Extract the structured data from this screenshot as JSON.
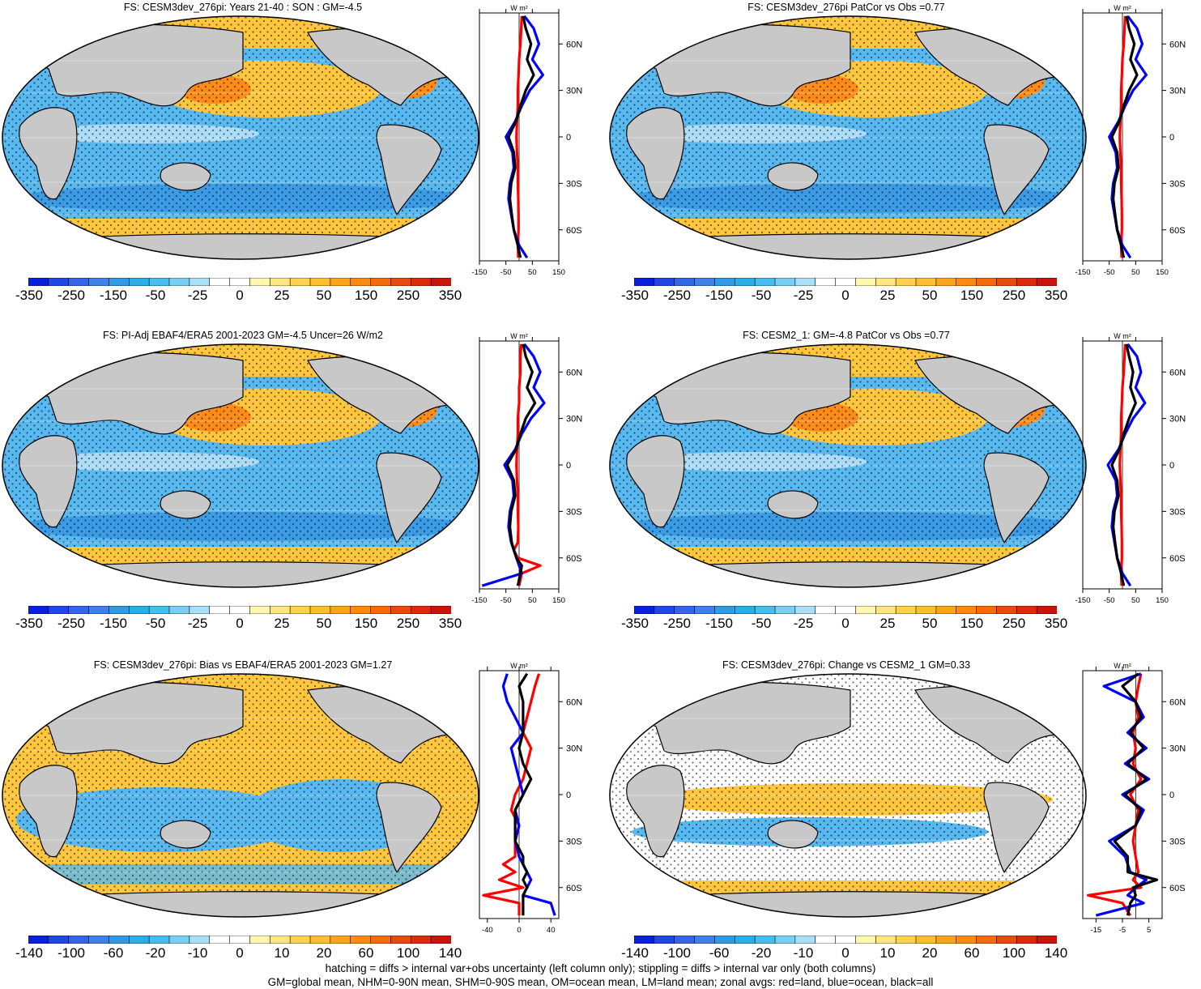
{
  "colorbars": {
    "main": {
      "labels": [
        "-350",
        "-250",
        "-150",
        "-50",
        "-25",
        "0",
        "25",
        "50",
        "150",
        "250",
        "350"
      ],
      "colors": [
        "#0a1fdc",
        "#2147e6",
        "#3464e8",
        "#3f80ea",
        "#2f9be6",
        "#29aee8",
        "#46bff0",
        "#79cff3",
        "#a9dff7",
        "#ffffff",
        "#ffffff",
        "#fff7b0",
        "#ffe680",
        "#ffd24d",
        "#ffbe2e",
        "#ffa31a",
        "#ff8a0f",
        "#f56a0a",
        "#e84a0a",
        "#dc2a0a",
        "#c8140a"
      ]
    },
    "diff": {
      "labels": [
        "-140",
        "-100",
        "-60",
        "-20",
        "-10",
        "0",
        "10",
        "20",
        "60",
        "100",
        "140"
      ],
      "colors": [
        "#0a1fdc",
        "#2147e6",
        "#3464e8",
        "#3f80ea",
        "#2f9be6",
        "#29aee8",
        "#46bff0",
        "#79cff3",
        "#a9dff7",
        "#ffffff",
        "#ffffff",
        "#fff7b0",
        "#ffe680",
        "#ffd24d",
        "#ffbe2e",
        "#ffa31a",
        "#ff8a0f",
        "#f56a0a",
        "#e84a0a",
        "#dc2a0a",
        "#c8140a"
      ]
    }
  },
  "map_palette": {
    "ocean_cool": "#58b8f0",
    "ocean_cold": "#2f8fe0",
    "ocean_warm": "#ffc640",
    "ocean_hot": "#ff8c1a",
    "land": "#c8c8c8",
    "neutral": "#ffffff"
  },
  "panels": [
    {
      "id": "p1",
      "title": "FS: CESM3dev_276pi: Years 21-40 : SON : GM=-4.5",
      "colorbar": "main",
      "xticks": [
        "-150",
        "-50",
        "50",
        "150"
      ],
      "style": "mean"
    },
    {
      "id": "p2",
      "title": "FS: CESM3dev_276pi PatCor vs Obs =0.77",
      "colorbar": "main",
      "xticks": [
        "-150",
        "-50",
        "50",
        "150"
      ],
      "style": "mean"
    },
    {
      "id": "p3",
      "title": "FS: PI-Adj EBAF4/ERA5 2001-2023 GM=-4.5 Uncer=26 W/m2",
      "colorbar": "main",
      "xticks": [
        "-150",
        "-50",
        "50",
        "150"
      ],
      "style": "mean"
    },
    {
      "id": "p4",
      "title": "FS: CESM2_1: GM=-4.8 PatCor vs Obs =0.77",
      "colorbar": "main",
      "xticks": [
        "-150",
        "-50",
        "50",
        "150"
      ],
      "style": "mean"
    },
    {
      "id": "p5",
      "title": "FS: CESM3dev_276pi: Bias vs EBAF4/ERA5 2001-2023  GM=1.27",
      "colorbar": "diff",
      "xticks": [
        "-40",
        "0",
        "40"
      ],
      "style": "bias"
    },
    {
      "id": "p6",
      "title": "FS: CESM3dev_276pi: Change vs CESM2_1 GM=0.33",
      "colorbar": "diff",
      "xticks": [
        "-15",
        "-5",
        "5"
      ],
      "style": "change"
    }
  ],
  "zonal": {
    "unit": "W m²",
    "lat_labels": [
      "60N",
      "30N",
      "0",
      "30S",
      "60S"
    ],
    "series_colors": {
      "land": "#ff0000",
      "ocean": "#0000ff",
      "all": "#000000"
    }
  },
  "chart_data": [
    {
      "type": "line",
      "title": "FS: CESM3dev_276pi: Years 21-40 : SON : GM=-4.5",
      "xlabel": "W m²",
      "xlim": [
        -150,
        150
      ],
      "ylim": [
        -80,
        80
      ],
      "yticks": [
        "60N",
        "30N",
        "0",
        "30S",
        "60S"
      ],
      "series": [
        {
          "name": "land",
          "lat": [
            78,
            70,
            60,
            50,
            40,
            30,
            20,
            10,
            0,
            -10,
            -20,
            -30,
            -40,
            -50,
            -60,
            -70,
            -78
          ],
          "values": [
            10,
            8,
            5,
            0,
            -2,
            -5,
            -5,
            -8,
            -10,
            -8,
            -5,
            -5,
            -3,
            -2,
            -2,
            -5,
            -3
          ]
        },
        {
          "name": "ocean",
          "lat": [
            78,
            70,
            60,
            50,
            40,
            30,
            20,
            10,
            0,
            -10,
            -20,
            -30,
            -40,
            -50,
            -60,
            -70,
            -78
          ],
          "values": [
            20,
            55,
            75,
            50,
            90,
            40,
            10,
            -15,
            -50,
            -25,
            -20,
            -35,
            -40,
            -30,
            -20,
            0,
            30
          ]
        },
        {
          "name": "all",
          "lat": [
            78,
            70,
            60,
            50,
            40,
            30,
            20,
            10,
            0,
            -10,
            -20,
            -30,
            -40,
            -50,
            -60,
            -70,
            -78
          ],
          "values": [
            15,
            25,
            45,
            30,
            55,
            25,
            5,
            -12,
            -40,
            -20,
            -15,
            -30,
            -35,
            -28,
            -20,
            -5,
            5
          ]
        }
      ]
    },
    {
      "type": "line",
      "title": "FS: CESM3dev_276pi PatCor vs Obs =0.77",
      "xlabel": "W m²",
      "xlim": [
        -150,
        150
      ],
      "ylim": [
        -80,
        80
      ],
      "yticks": [
        "60N",
        "30N",
        "0",
        "30S",
        "60S"
      ],
      "series": [
        {
          "name": "land",
          "lat": [
            78,
            70,
            60,
            50,
            40,
            30,
            20,
            10,
            0,
            -10,
            -20,
            -30,
            -40,
            -50,
            -60,
            -70,
            -78
          ],
          "values": [
            10,
            8,
            5,
            0,
            -2,
            -5,
            -5,
            -8,
            -10,
            -8,
            -5,
            -5,
            -3,
            -2,
            -2,
            -5,
            -3
          ]
        },
        {
          "name": "ocean",
          "lat": [
            78,
            70,
            60,
            50,
            40,
            30,
            20,
            10,
            0,
            -10,
            -20,
            -30,
            -40,
            -50,
            -60,
            -70,
            -78
          ],
          "values": [
            20,
            55,
            75,
            50,
            90,
            40,
            10,
            -15,
            -50,
            -25,
            -20,
            -35,
            -40,
            -30,
            -20,
            0,
            30
          ]
        },
        {
          "name": "all",
          "lat": [
            78,
            70,
            60,
            50,
            40,
            30,
            20,
            10,
            0,
            -10,
            -20,
            -30,
            -40,
            -50,
            -60,
            -70,
            -78
          ],
          "values": [
            15,
            25,
            45,
            30,
            55,
            25,
            5,
            -12,
            -40,
            -20,
            -15,
            -30,
            -35,
            -28,
            -20,
            -5,
            5
          ]
        }
      ]
    },
    {
      "type": "line",
      "title": "FS: PI-Adj EBAF4/ERA5 2001-2023 GM=-4.5 Uncer=26 W/m2",
      "xlabel": "W m²",
      "xlim": [
        -150,
        150
      ],
      "ylim": [
        -80,
        80
      ],
      "yticks": [
        "60N",
        "30N",
        "0",
        "30S",
        "60S"
      ],
      "series": [
        {
          "name": "land",
          "lat": [
            78,
            70,
            60,
            50,
            40,
            30,
            20,
            10,
            0,
            -10,
            -20,
            -30,
            -40,
            -50,
            -55,
            -60,
            -65,
            -70,
            -78
          ],
          "values": [
            8,
            5,
            5,
            0,
            0,
            -5,
            -5,
            -8,
            -10,
            -8,
            -5,
            -5,
            -3,
            -5,
            -20,
            -5,
            80,
            10,
            0
          ]
        },
        {
          "name": "ocean",
          "lat": [
            78,
            70,
            60,
            50,
            40,
            30,
            20,
            10,
            0,
            -10,
            -20,
            -30,
            -40,
            -50,
            -55,
            -60,
            -65,
            -70,
            -78
          ],
          "values": [
            20,
            55,
            80,
            55,
            95,
            45,
            10,
            -15,
            -55,
            -25,
            -20,
            -35,
            -40,
            -30,
            -20,
            -10,
            0,
            10,
            -140
          ]
        },
        {
          "name": "all",
          "lat": [
            78,
            70,
            60,
            50,
            40,
            30,
            20,
            10,
            0,
            -10,
            -20,
            -30,
            -40,
            -50,
            -55,
            -60,
            -65,
            -70,
            -78
          ],
          "values": [
            15,
            25,
            50,
            30,
            60,
            25,
            5,
            -12,
            -45,
            -20,
            -15,
            -30,
            -35,
            -28,
            -20,
            -10,
            10,
            5,
            -5
          ]
        }
      ]
    },
    {
      "type": "line",
      "title": "FS: CESM2_1: GM=-4.8 PatCor vs Obs =0.77",
      "xlabel": "W m²",
      "xlim": [
        -150,
        150
      ],
      "ylim": [
        -80,
        80
      ],
      "yticks": [
        "60N",
        "30N",
        "0",
        "30S",
        "60S"
      ],
      "series": [
        {
          "name": "land",
          "lat": [
            78,
            70,
            60,
            50,
            40,
            30,
            20,
            10,
            0,
            -10,
            -20,
            -30,
            -40,
            -50,
            -60,
            -70,
            -78
          ],
          "values": [
            10,
            8,
            5,
            0,
            -2,
            -5,
            -5,
            -8,
            -10,
            -8,
            -5,
            -5,
            -3,
            -2,
            -2,
            -5,
            -3
          ]
        },
        {
          "name": "ocean",
          "lat": [
            78,
            70,
            60,
            50,
            40,
            30,
            20,
            10,
            0,
            -10,
            -20,
            -30,
            -40,
            -50,
            -60,
            -70,
            -78
          ],
          "values": [
            20,
            55,
            70,
            50,
            85,
            40,
            10,
            -15,
            -55,
            -25,
            -20,
            -35,
            -40,
            -30,
            -20,
            0,
            30
          ]
        },
        {
          "name": "all",
          "lat": [
            78,
            70,
            60,
            50,
            40,
            30,
            20,
            10,
            0,
            -10,
            -20,
            -30,
            -40,
            -50,
            -60,
            -70,
            -78
          ],
          "values": [
            15,
            25,
            40,
            30,
            50,
            25,
            5,
            -12,
            -40,
            -20,
            -15,
            -30,
            -35,
            -28,
            -20,
            -5,
            5
          ]
        }
      ]
    },
    {
      "type": "line",
      "title": "FS: CESM3dev_276pi: Bias vs EBAF4/ERA5 2001-2023  GM=1.27",
      "xlabel": "W m²",
      "xlim": [
        -50,
        50
      ],
      "ylim": [
        -80,
        80
      ],
      "yticks": [
        "60N",
        "30N",
        "0",
        "30S",
        "60S"
      ],
      "series": [
        {
          "name": "land",
          "lat": [
            78,
            70,
            60,
            50,
            40,
            30,
            20,
            10,
            0,
            -10,
            -20,
            -30,
            -40,
            -45,
            -50,
            -55,
            -60,
            -65,
            -70,
            -78
          ],
          "values": [
            25,
            20,
            15,
            10,
            5,
            15,
            10,
            5,
            -5,
            -10,
            0,
            -5,
            -5,
            -20,
            -5,
            -25,
            5,
            -45,
            0,
            0
          ]
        },
        {
          "name": "ocean",
          "lat": [
            78,
            70,
            60,
            50,
            40,
            30,
            20,
            10,
            0,
            -10,
            -20,
            -30,
            -40,
            -45,
            -50,
            -55,
            -60,
            -65,
            -70,
            -78
          ],
          "values": [
            -15,
            -20,
            -15,
            -5,
            5,
            -10,
            -5,
            0,
            5,
            -5,
            0,
            -5,
            0,
            5,
            10,
            15,
            10,
            5,
            40,
            45
          ]
        },
        {
          "name": "all",
          "lat": [
            78,
            70,
            60,
            50,
            40,
            30,
            20,
            10,
            0,
            -10,
            -20,
            -30,
            -40,
            -45,
            -50,
            -55,
            -60,
            -65,
            -70,
            -78
          ],
          "values": [
            10,
            0,
            5,
            5,
            5,
            0,
            5,
            15,
            5,
            -5,
            -5,
            -5,
            5,
            5,
            10,
            5,
            10,
            5,
            5,
            5
          ]
        }
      ]
    },
    {
      "type": "line",
      "title": "FS: CESM3dev_276pi: Change vs CESM2_1 GM=0.33",
      "xlabel": "W m²",
      "xlim": [
        -20,
        10
      ],
      "ylim": [
        -80,
        80
      ],
      "yticks": [
        "60N",
        "30N",
        "0",
        "30S",
        "60S"
      ],
      "series": [
        {
          "name": "land",
          "lat": [
            78,
            70,
            60,
            50,
            40,
            30,
            20,
            10,
            0,
            -10,
            -20,
            -30,
            -40,
            -50,
            -55,
            -60,
            -65,
            -70,
            -78
          ],
          "values": [
            2,
            1,
            0,
            1,
            -1,
            0,
            -1,
            2,
            -2,
            1,
            0,
            -1,
            0,
            1,
            -1,
            2,
            -18,
            -5,
            -2
          ]
        },
        {
          "name": "ocean",
          "lat": [
            78,
            70,
            60,
            50,
            40,
            30,
            20,
            10,
            0,
            -10,
            -20,
            -30,
            -40,
            -50,
            -55,
            -60,
            -65,
            -70,
            -78
          ],
          "values": [
            2,
            -12,
            0,
            3,
            -3,
            4,
            -4,
            5,
            -5,
            3,
            0,
            -10,
            -4,
            -2,
            4,
            0,
            -3,
            3,
            -15
          ]
        },
        {
          "name": "all",
          "lat": [
            78,
            70,
            60,
            50,
            40,
            30,
            20,
            10,
            0,
            -10,
            -20,
            -30,
            -40,
            -50,
            -55,
            -60,
            -65,
            -70,
            -78
          ],
          "values": [
            1,
            -5,
            0,
            2,
            -2,
            3,
            -3,
            4,
            -4,
            2,
            0,
            -8,
            -3,
            -3,
            8,
            -1,
            0,
            -2,
            -3
          ]
        }
      ]
    }
  ],
  "footer": {
    "line1": "hatching = diffs > internal var+obs uncertainty (left column only); stippling = diffs > internal var only (both columns)",
    "line2": "GM=global mean, NHM=0-90N mean, SHM=0-90S mean, OM=ocean mean, LM=land mean; zonal avgs: red=land, blue=ocean, black=all"
  }
}
